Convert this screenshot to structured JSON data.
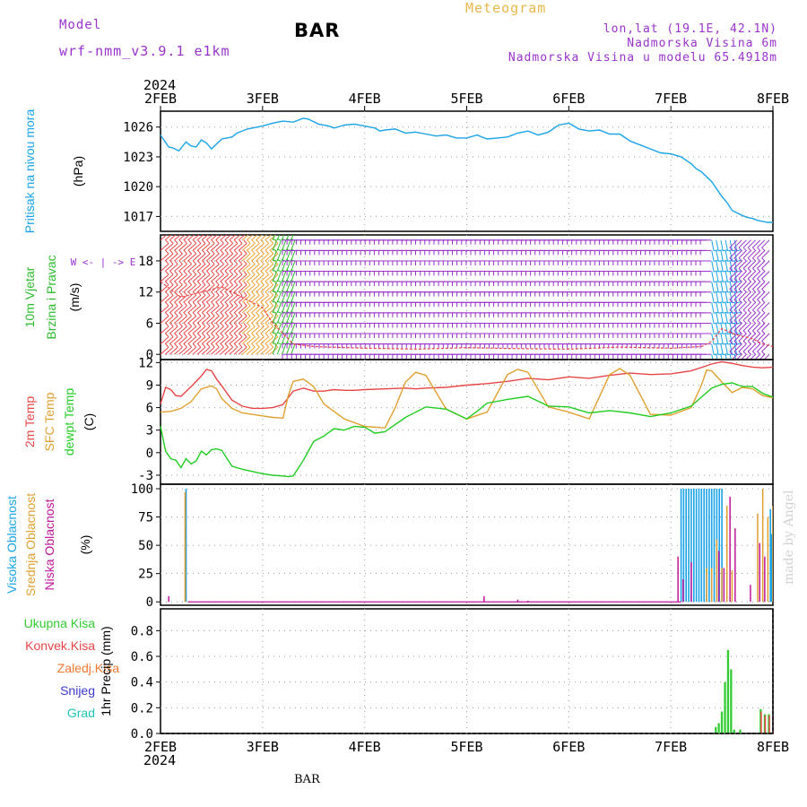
{
  "header": {
    "model_label": "Model",
    "model_name": "wrf-nmm_v3.9.1 e1km",
    "title": "BAR",
    "meteogram_label": "Meteogram",
    "lonlat": "lon,lat (19.1E, 42.1N)",
    "elevation": "Nadmorska Visina 6m",
    "model_elevation": "Nadmorska Visina u modelu 65.4918m",
    "footer_station": "BAR",
    "credit": "made by Angel"
  },
  "colors": {
    "pressure": "#1aa3e6",
    "wind_label": "#2dbb2d",
    "temp2m": "#e84646",
    "sfc": "#e0a030",
    "dewpt": "#22cc22",
    "high_cloud": "#1aa3e6",
    "mid_cloud": "#e0a030",
    "low_cloud": "#c0169a",
    "precip_total": "#33cc33",
    "precip_conv": "#e84646",
    "precip_frz": "#f07a30",
    "precip_snow": "#3a3ad0",
    "precip_grad": "#22c4b4",
    "text_purple": "#9933cc"
  },
  "chart_data": {
    "type": "meteogram",
    "x_axis": {
      "year_label": "2024",
      "ticks": [
        "2FEB",
        "3FEB",
        "4FEB",
        "5FEB",
        "6FEB",
        "7FEB",
        "8FEB"
      ],
      "range_days": [
        0,
        6
      ]
    },
    "panels": [
      {
        "id": "pressure",
        "type": "line",
        "ylabel_lines": [
          "Pritisak na nivou mora"
        ],
        "unit": "(hPa)",
        "yticks": [
          1017,
          1020,
          1023,
          1026
        ],
        "ylim": [
          1015.5,
          1027.6
        ],
        "series": [
          {
            "key": "pressure",
            "x": [
              0,
              0.08,
              0.12,
              0.18,
              0.25,
              0.3,
              0.35,
              0.4,
              0.45,
              0.5,
              0.55,
              0.6,
              0.65,
              0.7,
              0.75,
              0.85,
              0.95,
              1.0,
              1.1,
              1.2,
              1.3,
              1.4,
              1.45,
              1.55,
              1.65,
              1.7,
              1.8,
              1.9,
              2.0,
              2.1,
              2.15,
              2.2,
              2.3,
              2.4,
              2.5,
              2.6,
              2.7,
              2.8,
              2.9,
              3.0,
              3.1,
              3.2,
              3.3,
              3.4,
              3.5,
              3.6,
              3.7,
              3.8,
              3.9,
              4.0,
              4.1,
              4.2,
              4.3,
              4.4,
              4.5,
              4.6,
              4.7,
              4.8,
              4.9,
              5.0,
              5.1,
              5.2,
              5.25,
              5.3,
              5.4,
              5.5,
              5.55,
              5.6,
              5.7,
              5.75,
              5.8,
              5.85,
              5.9,
              5.95,
              6.0
            ],
            "y": [
              1025.2,
              1024.0,
              1023.9,
              1023.6,
              1024.5,
              1024.1,
              1024.0,
              1024.7,
              1024.4,
              1023.8,
              1024.3,
              1024.8,
              1024.9,
              1025.0,
              1025.4,
              1025.8,
              1026.0,
              1026.1,
              1026.4,
              1026.6,
              1026.5,
              1026.9,
              1026.8,
              1026.3,
              1026.1,
              1025.9,
              1026.2,
              1026.3,
              1026.1,
              1025.9,
              1025.6,
              1025.7,
              1025.8,
              1025.4,
              1025.5,
              1025.3,
              1025.1,
              1025.2,
              1024.9,
              1024.9,
              1025.2,
              1024.8,
              1024.9,
              1025.0,
              1025.4,
              1025.6,
              1025.2,
              1025.5,
              1026.2,
              1026.4,
              1025.8,
              1025.6,
              1025.7,
              1025.3,
              1025.3,
              1024.6,
              1024.2,
              1023.8,
              1023.4,
              1023.3,
              1023.0,
              1022.3,
              1021.8,
              1021.5,
              1020.5,
              1019.0,
              1018.4,
              1017.6,
              1017.1,
              1016.9,
              1016.8,
              1016.6,
              1016.5,
              1016.4,
              1016.4
            ]
          }
        ]
      },
      {
        "id": "wind",
        "type": "wind_barbs",
        "ylabel_lines": [
          "10m Vjetar",
          "Brzina i Pravac"
        ],
        "unit": "(m/s)",
        "yticks": [
          0,
          6,
          12,
          18
        ],
        "ylim": [
          -1,
          23
        ],
        "compass_label": "W <- | -> E",
        "barb_levels": [
          0,
          2,
          4,
          6,
          8,
          10,
          12,
          14,
          16,
          18,
          20,
          22
        ],
        "barb_samples": [
          {
            "day_from": 0,
            "day_to": 0.8,
            "color": "#e84646",
            "dir": "SW"
          },
          {
            "day_from": 0.8,
            "day_to": 1.1,
            "color": "#f0a030",
            "dir": "SW"
          },
          {
            "day_from": 1.1,
            "day_to": 1.3,
            "color": "#2dbb2d",
            "dir": "S"
          },
          {
            "day_from": 1.3,
            "day_to": 5.4,
            "color": "#9933cc",
            "dir": "E"
          },
          {
            "day_from": 5.4,
            "day_to": 5.65,
            "color": "#1aa3e6",
            "dir": "N"
          },
          {
            "day_from": 5.65,
            "day_to": 6.0,
            "color": "#9933cc",
            "dir": "NE"
          }
        ],
        "series": [
          {
            "key": "wind_speed",
            "color": "#e84646",
            "x": [
              0,
              0.2,
              0.4,
              0.6,
              0.8,
              1.0,
              1.1,
              1.2,
              1.3,
              1.5,
              2.0,
              2.5,
              3.0,
              3.5,
              4.0,
              4.5,
              5.0,
              5.3,
              5.4,
              5.5,
              5.6,
              5.7,
              5.8,
              5.9,
              6.0
            ],
            "y": [
              14,
              11,
              12,
              13,
              11,
              9,
              6,
              4,
              2,
              1.5,
              1.2,
              1.0,
              1.3,
              1.1,
              1.0,
              1.4,
              1.2,
              1.5,
              2.5,
              5,
              4,
              3.5,
              3,
              2,
              1.5
            ]
          }
        ]
      },
      {
        "id": "temperature",
        "type": "line",
        "ylabel_lines": [
          "2m Temp",
          "SFC Temp",
          "dewpt Temp"
        ],
        "unit": "(C)",
        "yticks": [
          -3,
          0,
          3,
          6,
          9,
          12
        ],
        "ylim": [
          -4.2,
          12.4
        ],
        "series": [
          {
            "key": "temp2m",
            "name": "2m Temp",
            "x": [
              0,
              0.05,
              0.1,
              0.15,
              0.2,
              0.3,
              0.4,
              0.45,
              0.5,
              0.55,
              0.6,
              0.7,
              0.8,
              0.9,
              1.0,
              1.1,
              1.2,
              1.25,
              1.3,
              1.4,
              1.5,
              1.6,
              1.7,
              1.8,
              1.9,
              2.0,
              2.2,
              2.4,
              2.5,
              2.6,
              2.8,
              3.0,
              3.2,
              3.4,
              3.6,
              3.8,
              4.0,
              4.2,
              4.4,
              4.6,
              4.8,
              5.0,
              5.2,
              5.4,
              5.5,
              5.6,
              5.7,
              5.8,
              5.9,
              6.0
            ],
            "y": [
              6.5,
              8.7,
              8.4,
              7.6,
              7.5,
              8.8,
              10.2,
              11.1,
              10.9,
              9.8,
              8.9,
              7.0,
              6.2,
              5.9,
              5.9,
              6.0,
              6.4,
              7.3,
              8.2,
              8.6,
              8.2,
              8.2,
              8.4,
              8.3,
              8.3,
              8.4,
              8.5,
              8.6,
              8.5,
              8.6,
              8.7,
              9.0,
              9.2,
              9.5,
              9.9,
              9.7,
              10.1,
              9.9,
              10.3,
              10.6,
              10.4,
              10.5,
              10.9,
              11.8,
              12.1,
              11.9,
              11.6,
              11.4,
              11.3,
              11.4
            ]
          },
          {
            "key": "sfc",
            "name": "SFC Temp",
            "x": [
              0,
              0.1,
              0.2,
              0.3,
              0.4,
              0.5,
              0.55,
              0.6,
              0.7,
              0.8,
              1.0,
              1.1,
              1.2,
              1.25,
              1.3,
              1.4,
              1.5,
              1.6,
              1.8,
              2.0,
              2.2,
              2.3,
              2.4,
              2.5,
              2.6,
              2.8,
              3.0,
              3.2,
              3.4,
              3.5,
              3.6,
              3.8,
              4.0,
              4.2,
              4.4,
              4.5,
              4.6,
              4.8,
              5.0,
              5.2,
              5.3,
              5.35,
              5.4,
              5.5,
              5.6,
              5.7,
              5.8,
              5.9,
              6.0
            ],
            "y": [
              5.4,
              5.5,
              5.9,
              6.8,
              8.5,
              8.9,
              8.5,
              7.2,
              5.9,
              5.3,
              4.9,
              4.7,
              4.6,
              7.5,
              9.5,
              9.8,
              8.8,
              6.5,
              4.5,
              3.5,
              3.3,
              6.0,
              9.4,
              10.7,
              10.3,
              5.8,
              4.5,
              5.4,
              10.4,
              11.1,
              10.7,
              6.1,
              5.4,
              4.5,
              10.4,
              11.2,
              10.3,
              5.1,
              5.0,
              6.0,
              9.0,
              11.0,
              10.9,
              9.4,
              8.0,
              8.7,
              8.5,
              7.6,
              7.3
            ]
          },
          {
            "key": "dewpt",
            "name": "dewpt Temp",
            "x": [
              0,
              0.05,
              0.1,
              0.15,
              0.2,
              0.25,
              0.3,
              0.35,
              0.4,
              0.45,
              0.5,
              0.55,
              0.6,
              0.7,
              0.8,
              0.9,
              1.0,
              1.1,
              1.2,
              1.25,
              1.3,
              1.4,
              1.5,
              1.6,
              1.7,
              1.8,
              1.9,
              2.0,
              2.1,
              2.2,
              2.4,
              2.6,
              2.8,
              3.0,
              3.1,
              3.2,
              3.4,
              3.6,
              3.8,
              4.0,
              4.2,
              4.4,
              4.6,
              4.8,
              5.0,
              5.2,
              5.4,
              5.5,
              5.6,
              5.7,
              5.8,
              5.9,
              6.0
            ],
            "y": [
              3.5,
              0.2,
              -0.8,
              -1.0,
              -2.0,
              -0.8,
              -1.5,
              -1.1,
              0.2,
              -0.3,
              0.4,
              0.5,
              0.3,
              -1.8,
              -2.2,
              -2.5,
              -2.8,
              -3.0,
              -3.1,
              -3.2,
              -3.1,
              -1.0,
              1.5,
              2.2,
              3.2,
              3.0,
              3.5,
              3.4,
              2.6,
              2.8,
              4.7,
              6.1,
              5.8,
              4.5,
              5.5,
              6.6,
              7.1,
              7.5,
              6.2,
              6.1,
              5.3,
              5.6,
              5.3,
              4.8,
              5.3,
              6.2,
              8.6,
              9.1,
              9.3,
              8.8,
              8.8,
              7.9,
              7.4
            ]
          }
        ]
      },
      {
        "id": "cloud",
        "type": "bar",
        "ylabel_lines": [
          "Visoka Oblacnost",
          "Srednja Oblacnost",
          "Niska Oblacnost"
        ],
        "unit": "(%)",
        "yticks": [
          0,
          25,
          50,
          75,
          100
        ],
        "ylim": [
          -3,
          104
        ],
        "series": [
          {
            "key": "high_cloud",
            "name": "Visoka Oblacnost",
            "x": [
              0.25,
              5.1,
              5.125,
              5.15,
              5.175,
              5.2,
              5.225,
              5.25,
              5.275,
              5.3,
              5.325,
              5.35,
              5.375,
              5.4,
              5.425,
              5.45,
              5.475,
              5.5,
              5.975,
              5.985
            ],
            "y": [
              100,
              100,
              100,
              100,
              100,
              100,
              100,
              100,
              100,
              100,
              100,
              100,
              100,
              100,
              100,
              100,
              100,
              100,
              82,
              60
            ],
            "width": 0.014
          },
          {
            "key": "mid_cloud",
            "name": "Srednja Oblacnost",
            "x": [
              0.24,
              5.35,
              5.4,
              5.45,
              5.5,
              5.55,
              5.6,
              5.85,
              5.9,
              5.95,
              6.0
            ],
            "y": [
              97,
              30,
              30,
              55,
              30,
              85,
              28,
              78,
              100,
              75,
              85
            ],
            "width": 0.006
          },
          {
            "key": "low_cloud",
            "name": "Niska Oblacnost",
            "x": [
              0.08,
              3.17,
              3.5,
              3.6,
              5.07,
              5.12,
              5.2,
              5.47,
              5.52,
              5.58,
              5.63,
              5.78,
              5.87,
              5.92
            ],
            "y": [
              5,
              5,
              2,
              1,
              40,
              20,
              35,
              45,
              30,
              93,
              65,
              15,
              52,
              40
            ],
            "width": 0.006
          }
        ]
      },
      {
        "id": "precip",
        "type": "bar",
        "ylabel_lines": [
          "1hr Precip (mm)"
        ],
        "unit": "",
        "yticks": [
          0.0,
          0.2,
          0.4,
          0.6,
          0.8
        ],
        "ylim": [
          0,
          0.97
        ],
        "legend": [
          "Ukupna Kisa",
          "Konvek.Kisa",
          "Zaledj.Kisa",
          "Snijeg",
          "Grad"
        ],
        "series": [
          {
            "key": "precip_total",
            "name": "Ukupna Kisa",
            "x": [
              5.44,
              5.47,
              5.5,
              5.53,
              5.56,
              5.59,
              5.62,
              5.68,
              5.88,
              5.92,
              5.96
            ],
            "y": [
              0.05,
              0.08,
              0.17,
              0.4,
              0.65,
              0.5,
              0.03,
              0.03,
              0.19,
              0.15,
              0.15
            ],
            "width": 0.02
          },
          {
            "key": "precip_conv",
            "name": "Konvek.Kisa",
            "x": [
              5.885,
              5.925,
              5.965
            ],
            "y": [
              0.17,
              0.14,
              0.14
            ],
            "width": 0.008
          }
        ]
      }
    ]
  }
}
